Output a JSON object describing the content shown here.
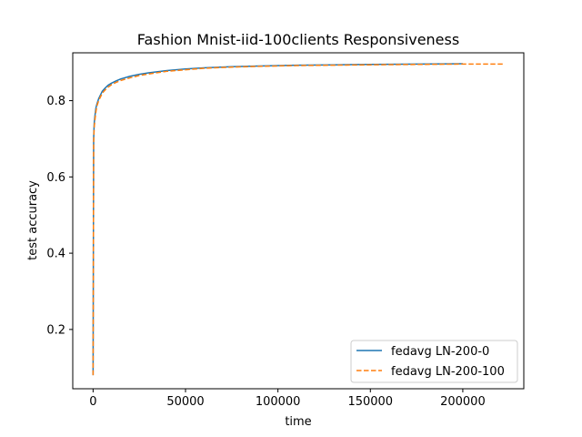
{
  "chart_data": {
    "type": "line",
    "title": "Fashion Mnist-iid-100clients Responsiveness",
    "xlabel": "time",
    "ylabel": "test accuracy",
    "xlim": [
      -11000,
      233000
    ],
    "ylim": [
      0.0445,
      0.9255
    ],
    "xticks": [
      0,
      50000,
      100000,
      150000,
      200000
    ],
    "xtick_labels": [
      "0",
      "50000",
      "100000",
      "150000",
      "200000"
    ],
    "yticks": [
      0.2,
      0.4,
      0.6,
      0.8
    ],
    "ytick_labels": [
      "0.2",
      "0.4",
      "0.6",
      "0.8"
    ],
    "grid": false,
    "legend_position": "lower-right",
    "series": [
      {
        "name": "fedavg LN-200-0",
        "color": "#1f77b4",
        "dash": "solid",
        "x": [
          0,
          300,
          600,
          1000,
          1500,
          2000,
          3000,
          4000,
          5000,
          6500,
          8000,
          10000,
          12500,
          15000,
          20000,
          25000,
          30000,
          40000,
          50000,
          60000,
          75000,
          90000,
          110000,
          130000,
          150000,
          175000,
          200000
        ],
        "y": [
          0.08,
          0.7,
          0.74,
          0.76,
          0.78,
          0.79,
          0.805,
          0.815,
          0.825,
          0.833,
          0.84,
          0.846,
          0.852,
          0.857,
          0.864,
          0.869,
          0.873,
          0.879,
          0.883,
          0.886,
          0.889,
          0.891,
          0.893,
          0.894,
          0.895,
          0.896,
          0.897
        ]
      },
      {
        "name": "fedavg LN-200-100",
        "color": "#ff7f0e",
        "dash": "dashed",
        "x": [
          0,
          300,
          600,
          1000,
          1500,
          2000,
          3000,
          4000,
          5000,
          6500,
          8000,
          10000,
          12500,
          15000,
          20000,
          25000,
          30000,
          40000,
          50000,
          60000,
          75000,
          90000,
          110000,
          130000,
          150000,
          175000,
          200000,
          222000
        ],
        "y": [
          0.08,
          0.69,
          0.73,
          0.75,
          0.77,
          0.785,
          0.8,
          0.81,
          0.82,
          0.828,
          0.835,
          0.842,
          0.848,
          0.853,
          0.86,
          0.866,
          0.87,
          0.877,
          0.881,
          0.885,
          0.888,
          0.89,
          0.892,
          0.893,
          0.894,
          0.895,
          0.896,
          0.896
        ]
      }
    ]
  }
}
